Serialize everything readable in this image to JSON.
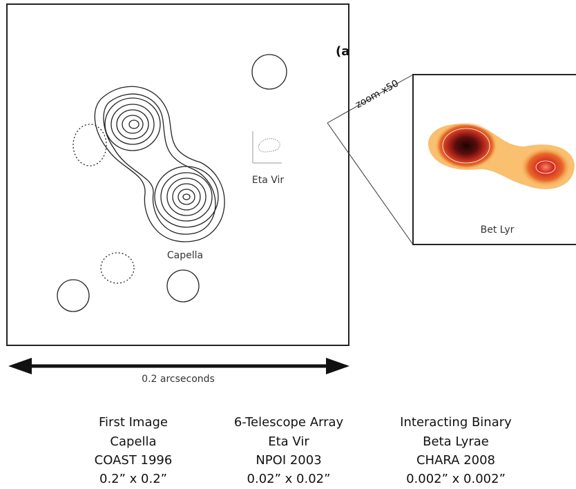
{
  "figure": {
    "panel_tag": "(a",
    "capella_label": "Capella",
    "eta_vir_label": "Eta Vir",
    "zoom_label": "zoom x50",
    "bet_lyr_label": "Bet Lyr",
    "scale_label": "0.2 arcseconds",
    "captions": [
      [
        "First Image",
        "Capella",
        "COAST 1996",
        "0.2” x 0.2”"
      ],
      [
        "6-Telescope Array",
        "Eta Vir",
        "NPOI 2003",
        "0.02” x 0.02”"
      ],
      [
        "Interacting Binary",
        "Beta Lyrae",
        "CHARA 2008",
        "0.002” x 0.002”"
      ]
    ]
  }
}
